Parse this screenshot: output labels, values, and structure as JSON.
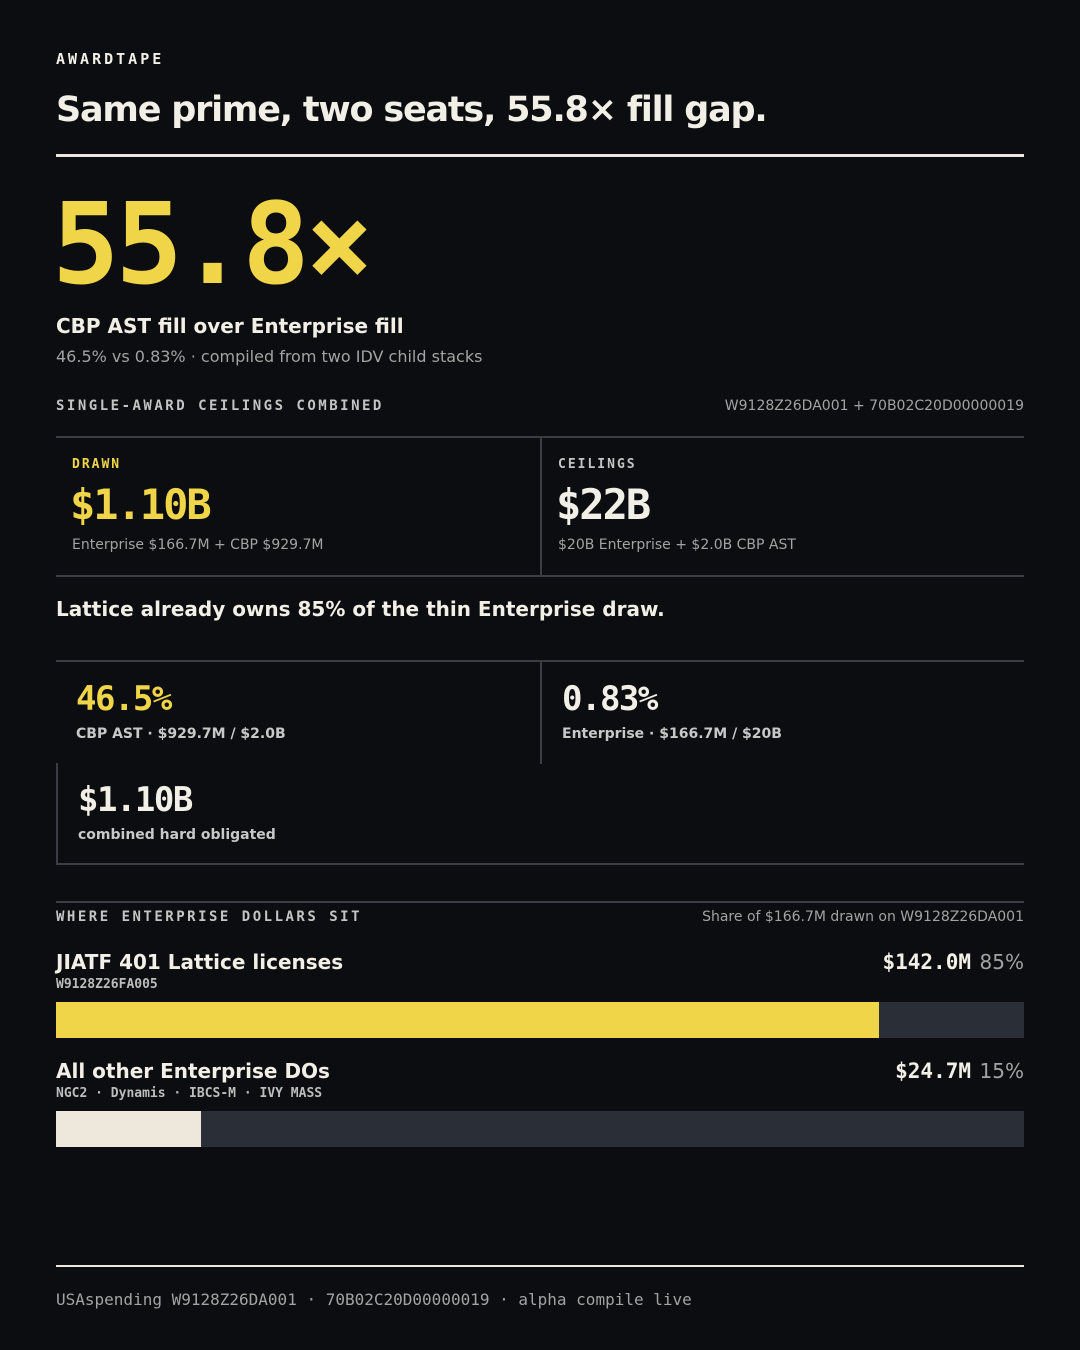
{
  "header": {
    "brand": "AWARDTAPE",
    "title": "Same prime, two seats, 55.8× fill gap."
  },
  "hero": {
    "value": "55.8×",
    "label": "CBP AST fill over Enterprise fill",
    "sublabel": "46.5% vs 0.83% · compiled from two IDV child stacks"
  },
  "ceilings": {
    "heading": "SINGLE-AWARD CEILINGS COMBINED",
    "ids": "W9128Z26DA001 + 70B02C20D00000019",
    "cells": [
      {
        "label": "DRAWN",
        "value": "$1.10B",
        "note": "Enterprise $166.7M + CBP $929.7M"
      },
      {
        "label": "CEILINGS",
        "value": "$22B",
        "note": "$20B Enterprise + $2.0B CBP AST"
      }
    ]
  },
  "callout": "Lattice already owns 85% of the thin Enterprise draw.",
  "stats": [
    {
      "value": "46.5%",
      "label": "CBP AST · $929.7M / $2.0B"
    },
    {
      "value": "0.83%",
      "label": "Enterprise · $166.7M / $20B"
    },
    {
      "value": "$1.10B",
      "label": "combined hard obligated"
    }
  ],
  "breakdown": {
    "heading": "WHERE ENTERPRISE DOLLARS SIT",
    "note": "Share of $166.7M drawn on W9128Z26DA001",
    "xlim": [
      0,
      100
    ],
    "rows": [
      {
        "name": "JIATF 401 Lattice licenses",
        "code": "W9128Z26FA005",
        "amount": "$142.0M",
        "value": 85,
        "value_label": "85%",
        "color": "#f0d548"
      },
      {
        "name": "All other Enterprise DOs",
        "code": "NGC2 · Dynamis · IBCS-M · IVY MASS",
        "amount": "$24.7M",
        "value": 15,
        "value_label": "15%",
        "color": "#eee8dc"
      }
    ]
  },
  "footer": "USAspending W9128Z26DA001 · 70B02C20D00000019 · alpha compile live"
}
